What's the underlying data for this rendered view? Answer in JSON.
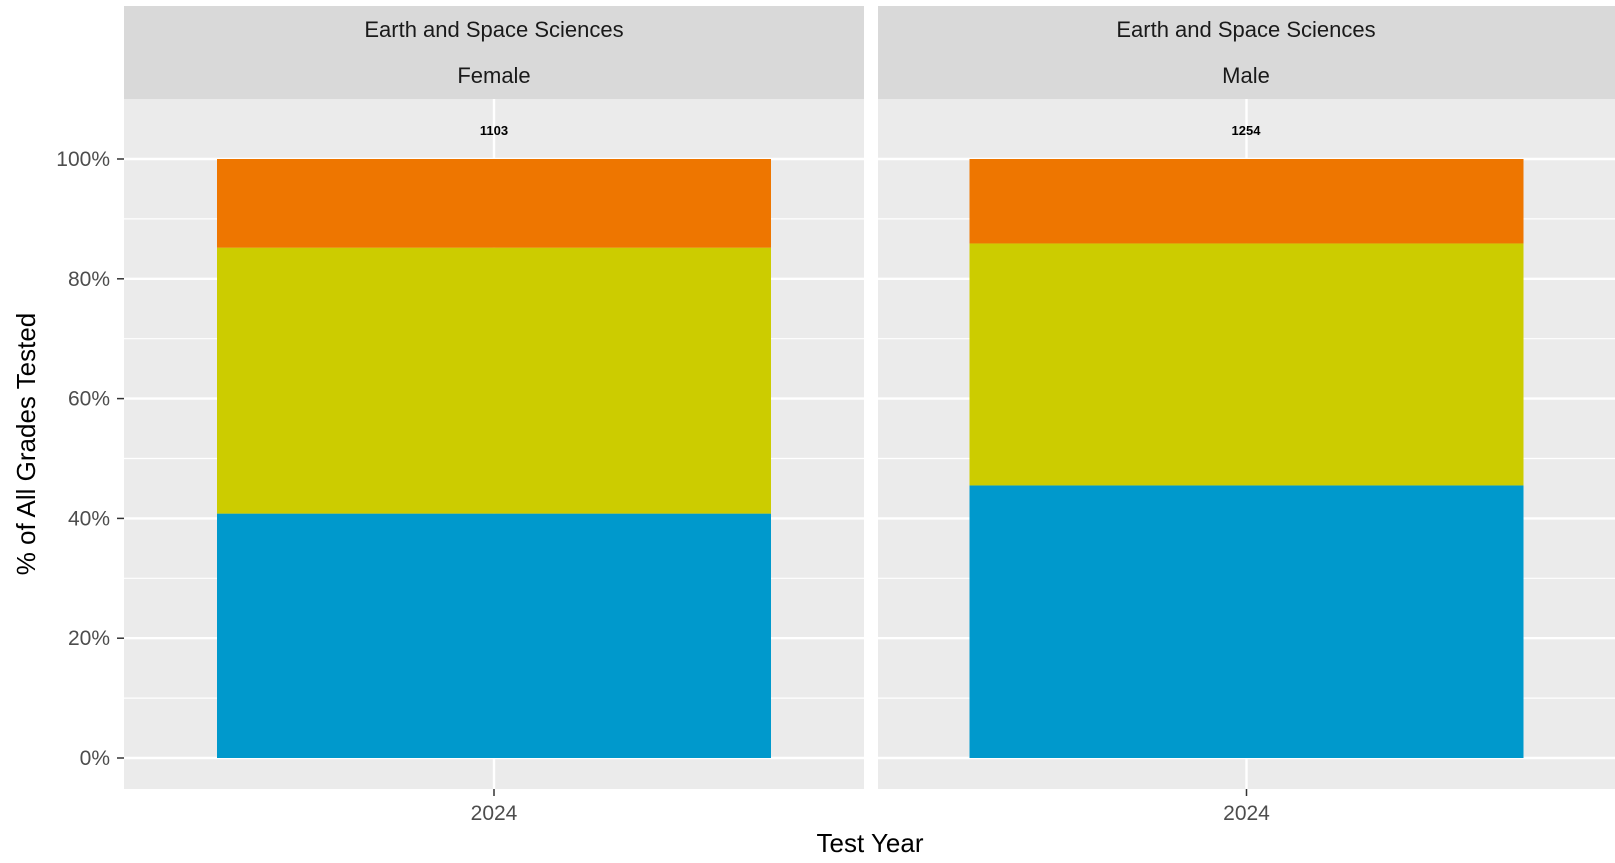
{
  "chart_data": {
    "type": "bar",
    "stacked": true,
    "percent": true,
    "xlabel": "Test Year",
    "ylabel": "% of All Grades Tested",
    "ylim": [
      0,
      100
    ],
    "y_ticks": [
      "0%",
      "20%",
      "40%",
      "60%",
      "80%",
      "100%"
    ],
    "y_tick_values": [
      0,
      20,
      40,
      60,
      80,
      100
    ],
    "grid": true,
    "panels": [
      {
        "strip": [
          "Earth and Space Sciences",
          "Female"
        ],
        "categories": [
          "2024"
        ],
        "total_label": "1103",
        "series": [
          {
            "color": "#0099CC",
            "values": [
              40.8
            ]
          },
          {
            "color": "#CCCC00",
            "values": [
              44.4
            ]
          },
          {
            "color": "#EE7600",
            "values": [
              14.8
            ]
          }
        ]
      },
      {
        "strip": [
          "Earth and Space Sciences",
          "Male"
        ],
        "categories": [
          "2024"
        ],
        "total_label": "1254",
        "series": [
          {
            "color": "#0099CC",
            "values": [
              45.5
            ]
          },
          {
            "color": "#CCCC00",
            "values": [
              40.4
            ]
          },
          {
            "color": "#EE7600",
            "values": [
              14.1
            ]
          }
        ]
      }
    ]
  }
}
